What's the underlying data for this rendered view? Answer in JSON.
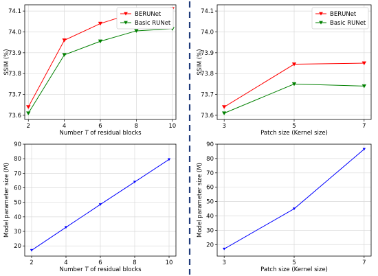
{
  "chart_data": [
    {
      "type": "line",
      "position": "top-left",
      "xlabel": "Number T of residual blocks",
      "ylabel": "SSIM (%)",
      "x": [
        2,
        4,
        6,
        8,
        10
      ],
      "x_ticks": [
        "2",
        "4",
        "6",
        "8",
        "10"
      ],
      "xlim": [
        1.8,
        10.2
      ],
      "ylim": [
        73.58,
        74.13
      ],
      "y_ticks": [
        73.6,
        73.7,
        73.8,
        73.9,
        74.0,
        74.1
      ],
      "y_tick_labels": [
        "73.6",
        "73.7",
        "73.8",
        "73.9",
        "74.0",
        "74.1"
      ],
      "grid": true,
      "legend": "top-right",
      "series": [
        {
          "name": "BERUNet",
          "color": "#ff0000",
          "marker": "triangle-down",
          "values": [
            73.64,
            73.96,
            74.04,
            74.095,
            74.11
          ]
        },
        {
          "name": "Basic RUNet",
          "color": "#008000",
          "marker": "triangle-down",
          "values": [
            73.61,
            73.89,
            73.955,
            74.005,
            74.015
          ]
        }
      ]
    },
    {
      "type": "line",
      "position": "top-right",
      "xlabel": "Patch size (Kernel size)",
      "ylabel": "SSIM (%)",
      "x": [
        3,
        5,
        7
      ],
      "x_ticks": [
        "3",
        "5",
        "7"
      ],
      "xlim": [
        2.8,
        7.2
      ],
      "ylim": [
        73.58,
        74.13
      ],
      "y_ticks": [
        73.6,
        73.7,
        73.8,
        73.9,
        74.0,
        74.1
      ],
      "y_tick_labels": [
        "73.6",
        "73.7",
        "73.8",
        "73.9",
        "74.0",
        "74.1"
      ],
      "grid": true,
      "legend": "top-right",
      "series": [
        {
          "name": "BERUNet",
          "color": "#ff0000",
          "marker": "triangle-down",
          "values": [
            73.64,
            73.845,
            73.85
          ]
        },
        {
          "name": "Basic RUNet",
          "color": "#008000",
          "marker": "triangle-down",
          "values": [
            73.61,
            73.75,
            73.74
          ]
        }
      ]
    },
    {
      "type": "line",
      "position": "bottom-left",
      "xlabel": "Number T of residual blocks",
      "ylabel": "Model parameter size (M)",
      "x": [
        2,
        4,
        6,
        8,
        10
      ],
      "x_ticks": [
        "2",
        "4",
        "6",
        "8",
        "10"
      ],
      "xlim": [
        1.6,
        10.4
      ],
      "ylim": [
        13,
        90
      ],
      "y_ticks": [
        20,
        30,
        40,
        50,
        60,
        70,
        80,
        90
      ],
      "y_tick_labels": [
        "20",
        "30",
        "40",
        "50",
        "60",
        "70",
        "80",
        "90"
      ],
      "grid": true,
      "series": [
        {
          "name": "",
          "color": "#0000ff",
          "marker": "triangle-down",
          "values": [
            17,
            32.8,
            48.5,
            64,
            79.5
          ]
        }
      ]
    },
    {
      "type": "line",
      "position": "bottom-right",
      "xlabel": "Patch size (Kernel size)",
      "ylabel": "Model parameter size (M)",
      "x": [
        3,
        5,
        7
      ],
      "x_ticks": [
        "3",
        "5",
        "7"
      ],
      "xlim": [
        2.8,
        7.2
      ],
      "ylim": [
        12,
        90
      ],
      "y_ticks": [
        20,
        30,
        40,
        50,
        60,
        70,
        80,
        90
      ],
      "y_tick_labels": [
        "20",
        "30",
        "40",
        "50",
        "60",
        "70",
        "80",
        "90"
      ],
      "grid": true,
      "series": [
        {
          "name": "",
          "color": "#0000ff",
          "marker": "triangle-down",
          "values": [
            17,
            45,
            86.5
          ]
        }
      ]
    }
  ],
  "divider": {
    "color": "#1f3a7a",
    "style": "dashed"
  }
}
